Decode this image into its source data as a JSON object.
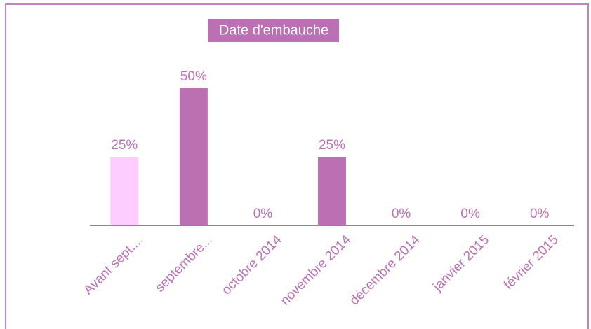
{
  "chart_data": {
    "type": "bar",
    "title": "Date d'embauche",
    "categories": [
      "Avant sept....",
      "septembre...",
      "octobre 2014",
      "novembre 2014",
      "décembre 2014",
      "janvier 2015",
      "février 2015"
    ],
    "values": [
      25,
      50,
      0,
      25,
      0,
      0,
      0
    ],
    "value_labels": [
      "25%",
      "50%",
      "0%",
      "25%",
      "0%",
      "0%",
      "0%"
    ],
    "colors": [
      "#ffccff",
      "#bb70b4",
      "#bb70b4",
      "#bb70b4",
      "#bb70b4",
      "#bb70b4",
      "#bb70b4"
    ]
  }
}
